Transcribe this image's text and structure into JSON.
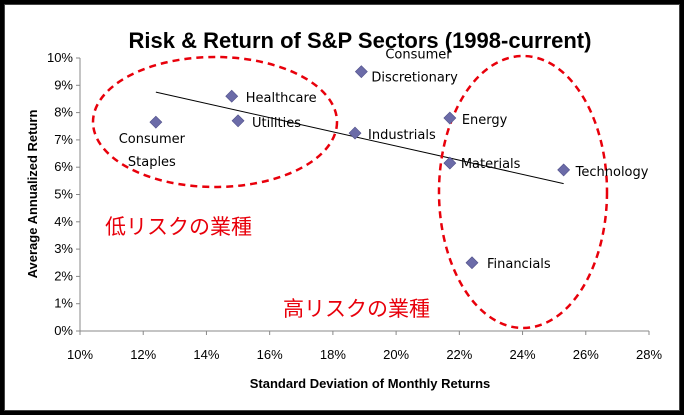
{
  "chart_data": {
    "type": "scatter",
    "title": "Risk & Return of S&P Sectors (1998-current)",
    "xlabel": "Standard Deviation of Monthly Returns",
    "ylabel": "Average Annualized Return",
    "xlim": [
      0.1,
      0.28
    ],
    "ylim": [
      0.0,
      0.1
    ],
    "xticks": [
      "10%",
      "12%",
      "14%",
      "16%",
      "18%",
      "20%",
      "22%",
      "24%",
      "26%",
      "28%"
    ],
    "yticks": [
      "0%",
      "1%",
      "2%",
      "3%",
      "4%",
      "5%",
      "6%",
      "7%",
      "8%",
      "9%",
      "10%"
    ],
    "grid": false,
    "marker_color": "#6b6ba8",
    "points": [
      {
        "label": "Consumer Staples",
        "label_lines": [
          "Consumer",
          "Staples"
        ],
        "x": 0.124,
        "y": 0.0765
      },
      {
        "label": "Healthcare",
        "label_lines": [
          "Healthcare"
        ],
        "x": 0.148,
        "y": 0.086
      },
      {
        "label": "Utilities",
        "label_lines": [
          "Utilities"
        ],
        "x": 0.15,
        "y": 0.077
      },
      {
        "label": "Consumer Discretionary",
        "label_lines": [
          "Consumer",
          "Discretionary"
        ],
        "x": 0.189,
        "y": 0.095
      },
      {
        "label": "Industrials",
        "label_lines": [
          "Industrials"
        ],
        "x": 0.187,
        "y": 0.0725
      },
      {
        "label": "Energy",
        "label_lines": [
          "Energy"
        ],
        "x": 0.217,
        "y": 0.078
      },
      {
        "label": "Materials",
        "label_lines": [
          "Materials"
        ],
        "x": 0.217,
        "y": 0.0615
      },
      {
        "label": "Financials",
        "label_lines": [
          "Financials"
        ],
        "x": 0.224,
        "y": 0.025
      },
      {
        "label": "Technology",
        "label_lines": [
          "Technology"
        ],
        "x": 0.253,
        "y": 0.059
      }
    ],
    "trendline": {
      "x": [
        0.124,
        0.253
      ],
      "y": [
        0.0875,
        0.054
      ],
      "color": "#000000"
    },
    "annotations": [
      {
        "text": "低リスクの業種",
        "color": "#e8000b"
      },
      {
        "text": "高リスクの業種",
        "color": "#e8000b"
      }
    ],
    "ellipse_color": "#e8000b"
  }
}
